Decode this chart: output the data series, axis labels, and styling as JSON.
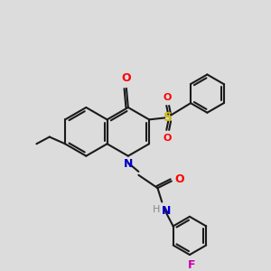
{
  "background_color": "#dcdcdc",
  "bond_color": "#1a1a1a",
  "atom_colors": {
    "O": "#ff0000",
    "N": "#0000cc",
    "S": "#ccbb00",
    "F": "#cc00aa",
    "H": "#888888"
  },
  "figsize": [
    3.0,
    3.0
  ],
  "dpi": 100
}
